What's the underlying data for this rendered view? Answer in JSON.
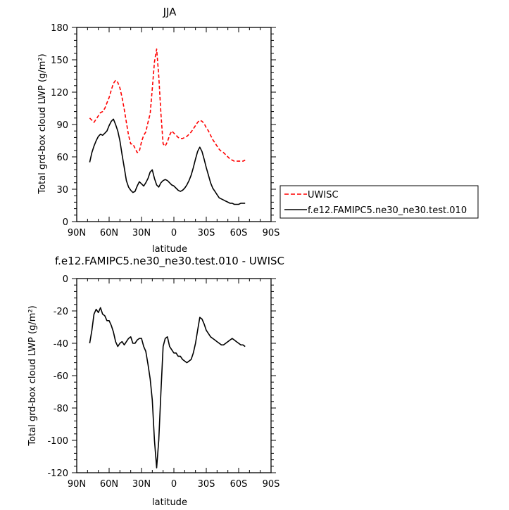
{
  "chart_data": [
    {
      "type": "line",
      "title": "JJA",
      "xlabel": "latitude",
      "ylabel": "Total grd-box cloud LWP (g/m²)",
      "xlim": [
        90,
        -90
      ],
      "ylim": [
        0,
        180
      ],
      "xticks": [
        90,
        60,
        30,
        0,
        -30,
        -60,
        -90
      ],
      "xtick_labels": [
        "90N",
        "60N",
        "30N",
        "0",
        "30S",
        "60S",
        "90S"
      ],
      "yticks": [
        0,
        30,
        60,
        90,
        120,
        150,
        180
      ],
      "ytick_labels": [
        "0",
        "30",
        "60",
        "90",
        "120",
        "150",
        "180"
      ],
      "legend_position": "right-outside",
      "series": [
        {
          "name": "UWISC",
          "color": "#ff0000",
          "dash": "dashed",
          "x": [
            78,
            76,
            74,
            72,
            70,
            68,
            66,
            64,
            62,
            60,
            58,
            56,
            54,
            52,
            50,
            48,
            46,
            44,
            42,
            40,
            38,
            36,
            34,
            32,
            30,
            28,
            26,
            24,
            22,
            20,
            18,
            16,
            14,
            12,
            10,
            8,
            6,
            4,
            2,
            0,
            -2,
            -4,
            -6,
            -8,
            -10,
            -12,
            -14,
            -16,
            -18,
            -20,
            -22,
            -24,
            -26,
            -28,
            -30,
            -32,
            -34,
            -36,
            -38,
            -40,
            -42,
            -44,
            -46,
            -48,
            -50,
            -52,
            -54,
            -56,
            -58,
            -60,
            -62,
            -64,
            -66
          ],
          "y": [
            96,
            94,
            92,
            95,
            98,
            101,
            102,
            105,
            110,
            115,
            122,
            128,
            131,
            129,
            124,
            115,
            104,
            92,
            80,
            72,
            72,
            68,
            64,
            65,
            74,
            80,
            83,
            92,
            100,
            123,
            148,
            160,
            135,
            100,
            72,
            70,
            74,
            80,
            84,
            82,
            80,
            78,
            77,
            77,
            78,
            79,
            81,
            83,
            86,
            89,
            92,
            94,
            93,
            91,
            87,
            84,
            80,
            76,
            73,
            70,
            67,
            65,
            64,
            62,
            60,
            58,
            57,
            56,
            56,
            56,
            56,
            56,
            57
          ]
        },
        {
          "name": "f.e12.FAMIPC5.ne30_ne30.test.010",
          "color": "#000000",
          "dash": "solid",
          "x": [
            78,
            76,
            74,
            72,
            70,
            68,
            66,
            64,
            62,
            60,
            58,
            56,
            54,
            52,
            50,
            48,
            46,
            44,
            42,
            40,
            38,
            36,
            34,
            32,
            30,
            28,
            26,
            24,
            22,
            20,
            18,
            16,
            14,
            12,
            10,
            8,
            6,
            4,
            2,
            0,
            -2,
            -4,
            -6,
            -8,
            -10,
            -12,
            -14,
            -16,
            -18,
            -20,
            -22,
            -24,
            -26,
            -28,
            -30,
            -32,
            -34,
            -36,
            -38,
            -40,
            -42,
            -44,
            -46,
            -48,
            -50,
            -52,
            -54,
            -56,
            -58,
            -60,
            -62,
            -64,
            -66
          ],
          "y": [
            55,
            64,
            70,
            75,
            79,
            81,
            80,
            82,
            84,
            89,
            93,
            95,
            90,
            84,
            75,
            62,
            50,
            38,
            32,
            29,
            27,
            28,
            33,
            37,
            35,
            33,
            36,
            40,
            46,
            48,
            40,
            34,
            32,
            36,
            38,
            39,
            38,
            36,
            34,
            33,
            31,
            29,
            28,
            29,
            31,
            34,
            38,
            43,
            50,
            58,
            65,
            69,
            65,
            58,
            50,
            43,
            36,
            31,
            28,
            25,
            22,
            21,
            20,
            19,
            18,
            17,
            17,
            16,
            16,
            16,
            17,
            17,
            17
          ]
        }
      ]
    },
    {
      "type": "line",
      "title": "f.e12.FAMIPC5.ne30_ne30.test.010 - UWISC",
      "xlabel": "latitude",
      "ylabel": "Total grd-box cloud LWP (g/m²)",
      "xlim": [
        90,
        -90
      ],
      "ylim": [
        -120,
        0
      ],
      "xticks": [
        90,
        60,
        30,
        0,
        -30,
        -60,
        -90
      ],
      "xtick_labels": [
        "90N",
        "60N",
        "30N",
        "0",
        "30S",
        "60S",
        "90S"
      ],
      "yticks": [
        -120,
        -100,
        -80,
        -60,
        -40,
        -20,
        0
      ],
      "ytick_labels": [
        "-120",
        "-100",
        "-80",
        "-60",
        "-40",
        "-20",
        "0"
      ],
      "series": [
        {
          "name": "",
          "color": "#000000",
          "dash": "solid",
          "x": [
            78,
            76,
            74,
            72,
            70,
            68,
            66,
            64,
            62,
            60,
            58,
            56,
            54,
            52,
            50,
            48,
            46,
            44,
            42,
            40,
            38,
            36,
            34,
            32,
            30,
            28,
            26,
            24,
            22,
            20,
            18,
            16,
            14,
            12,
            10,
            8,
            6,
            4,
            2,
            0,
            -2,
            -4,
            -6,
            -8,
            -10,
            -12,
            -14,
            -16,
            -18,
            -20,
            -22,
            -24,
            -26,
            -28,
            -30,
            -32,
            -34,
            -36,
            -38,
            -40,
            -42,
            -44,
            -46,
            -48,
            -50,
            -52,
            -54,
            -56,
            -58,
            -60,
            -62,
            -64,
            -66
          ],
          "y": [
            -40,
            -32,
            -22,
            -19,
            -21,
            -18,
            -22,
            -23,
            -26,
            -26,
            -29,
            -33,
            -39,
            -42,
            -40,
            -39,
            -41,
            -39,
            -37,
            -36,
            -40,
            -40,
            -38,
            -37,
            -37,
            -42,
            -45,
            -53,
            -62,
            -75,
            -100,
            -117,
            -100,
            -70,
            -42,
            -37,
            -36,
            -42,
            -44,
            -46,
            -46,
            -48,
            -48,
            -50,
            -51,
            -52,
            -51,
            -50,
            -46,
            -40,
            -32,
            -24,
            -25,
            -28,
            -32,
            -34,
            -36,
            -37,
            -38,
            -39,
            -40,
            -41,
            -41,
            -40,
            -39,
            -38,
            -37,
            -38,
            -39,
            -40,
            -41,
            -41,
            -42
          ]
        }
      ]
    }
  ],
  "legend": {
    "items": [
      {
        "label": "UWISC",
        "color": "#ff0000",
        "dash": "dashed"
      },
      {
        "label": "f.e12.FAMIPC5.ne30_ne30.test.010",
        "color": "#000000",
        "dash": "solid"
      }
    ]
  }
}
